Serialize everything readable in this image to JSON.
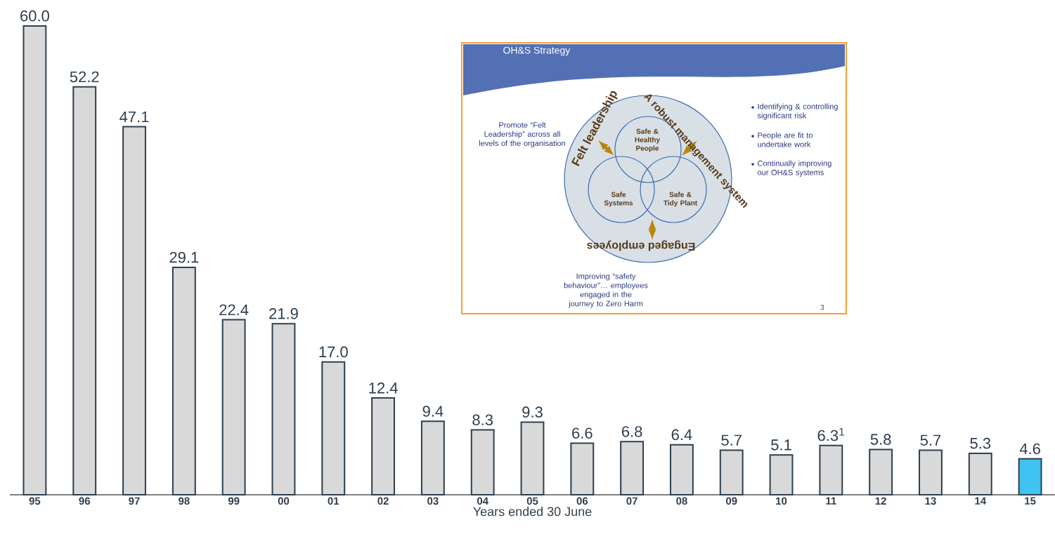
{
  "chart_data": {
    "type": "bar",
    "xlabel": "Years ended 30 June",
    "categories": [
      "95",
      "96",
      "97",
      "98",
      "99",
      "00",
      "01",
      "02",
      "03",
      "04",
      "05",
      "06",
      "07",
      "08",
      "09",
      "10",
      "11",
      "12",
      "13",
      "14",
      "15"
    ],
    "values": [
      60.0,
      52.2,
      47.1,
      29.1,
      22.4,
      21.9,
      17.0,
      12.4,
      9.4,
      8.3,
      9.3,
      6.6,
      6.8,
      6.4,
      5.7,
      5.1,
      6.3,
      5.8,
      5.7,
      5.3,
      4.6
    ],
    "value_labels": [
      "60.0",
      "52.2",
      "47.1",
      "29.1",
      "22.4",
      "21.9",
      "17.0",
      "12.4",
      "9.4",
      "8.3",
      "9.3",
      "6.6",
      "6.8",
      "6.4",
      "5.7",
      "5.1",
      "6.3$^{1}$",
      "5.8",
      "5.7",
      "5.3",
      "4.6"
    ],
    "colors": [
      "#d9d9d9",
      "#d9d9d9",
      "#d9d9d9",
      "#d9d9d9",
      "#d9d9d9",
      "#d9d9d9",
      "#d9d9d9",
      "#d9d9d9",
      "#d9d9d9",
      "#d9d9d9",
      "#d9d9d9",
      "#d9d9d9",
      "#d9d9d9",
      "#d9d9d9",
      "#d9d9d9",
      "#d9d9d9",
      "#d9d9d9",
      "#d9d9d9",
      "#d9d9d9",
      "#d9d9d9",
      "#3fc3f0"
    ],
    "ylim": [
      0,
      60
    ],
    "tick_labels": "x",
    "annotations": [
      "OH&S Strategy",
      "Promote “Felt Leadership” across all levels of the organisation",
      "Felt leadership",
      "A robust management system",
      "Engaged employees",
      "Safe & Healthy People",
      "Safe Systems",
      "Safe & Tidy Plant",
      "Identifying & controlling significant risk",
      "People are fit to undertake work",
      "Continually improving our OH&S systems",
      "Improving “safety behaviour”… employees engaged in the journey to Zero Harm",
      "3"
    ]
  }
}
